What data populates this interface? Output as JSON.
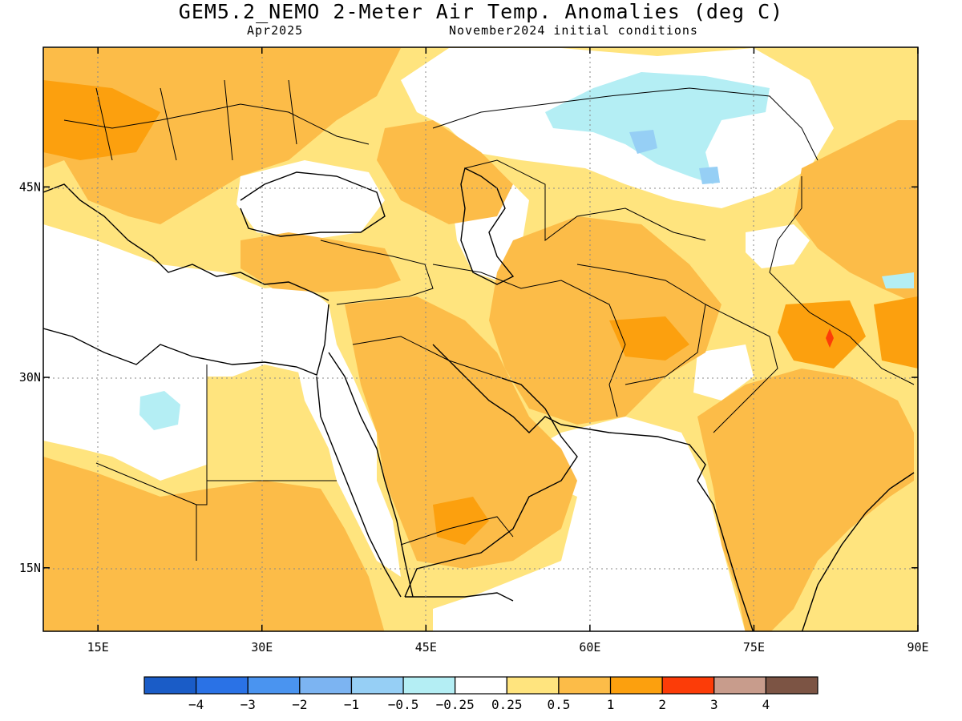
{
  "title": "GEM5.2_NEMO 2-Meter Air Temp. Anomalies (deg C)",
  "subtitle_left": "Apr2025",
  "subtitle_right": "November2024 initial conditions",
  "map": {
    "lon_range": [
      10,
      90
    ],
    "lat_range": [
      10,
      56
    ],
    "lat_ticks": [
      {
        "value": 45,
        "label": "45N"
      },
      {
        "value": 30,
        "label": "30N"
      },
      {
        "value": 15,
        "label": "15N"
      }
    ],
    "lon_ticks": [
      {
        "value": 15,
        "label": "15E"
      },
      {
        "value": 30,
        "label": "30E"
      },
      {
        "value": 45,
        "label": "45E"
      },
      {
        "value": 60,
        "label": "60E"
      },
      {
        "value": 75,
        "label": "75E"
      },
      {
        "value": 90,
        "label": "90E"
      }
    ]
  },
  "colorbar": {
    "colors": [
      "#1a5cc7",
      "#2a72e6",
      "#4a94f0",
      "#7cb4f2",
      "#96cff5",
      "#b4eef4",
      "#ffffff",
      "#ffe47e",
      "#fcbc48",
      "#fca00e",
      "#fc3c08",
      "#c89c8c",
      "#7c5444"
    ],
    "labels": [
      "−4",
      "−3",
      "−2",
      "−1",
      "−0.5",
      "−0.25",
      "0.25",
      "0.5",
      "1",
      "2",
      "3",
      "4"
    ]
  },
  "colors": {
    "light_orange": "#ffe47e",
    "orange": "#fcbc48",
    "dark_orange": "#fca00e",
    "red": "#fc3c08",
    "light_blue": "#b4eef4",
    "blue": "#96cff5"
  }
}
